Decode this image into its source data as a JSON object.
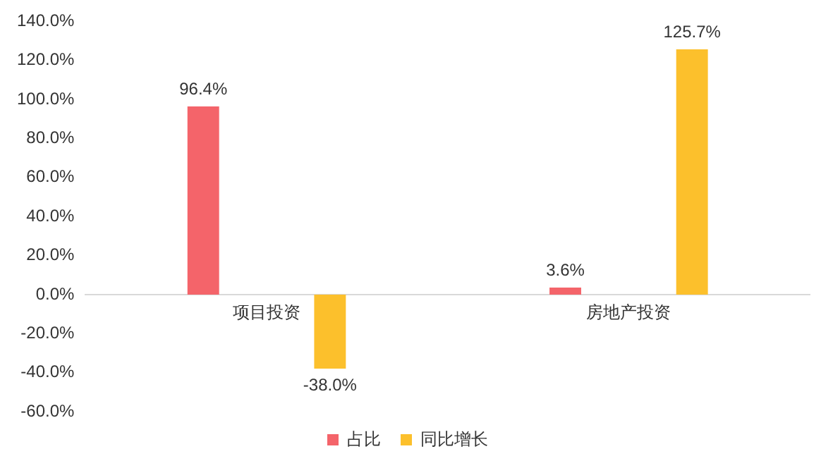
{
  "chart_data": {
    "type": "bar",
    "categories": [
      "项目投资",
      "房地产投资"
    ],
    "series": [
      {
        "name": "占比",
        "color": "#f4646a",
        "values": [
          96.4,
          3.6
        ],
        "value_labels": [
          "96.4%",
          "3.6%"
        ]
      },
      {
        "name": "同比增长",
        "color": "#fcc02c",
        "values": [
          -38.0,
          125.7
        ],
        "value_labels": [
          "-38.0%",
          "125.7%"
        ]
      }
    ],
    "ylim": [
      -60,
      140
    ],
    "yticks": [
      {
        "value": -60,
        "label": "-60.0%"
      },
      {
        "value": -40,
        "label": "-40.0%"
      },
      {
        "value": -20,
        "label": "-20.0%"
      },
      {
        "value": 0,
        "label": "0.0%"
      },
      {
        "value": 20,
        "label": "20.0%"
      },
      {
        "value": 40,
        "label": "40.0%"
      },
      {
        "value": 60,
        "label": "60.0%"
      },
      {
        "value": 80,
        "label": "80.0%"
      },
      {
        "value": 100,
        "label": "100.0%"
      },
      {
        "value": 120,
        "label": "120.0%"
      },
      {
        "value": 140,
        "label": "140.0%"
      }
    ],
    "grid": false,
    "legend": "bottom"
  }
}
